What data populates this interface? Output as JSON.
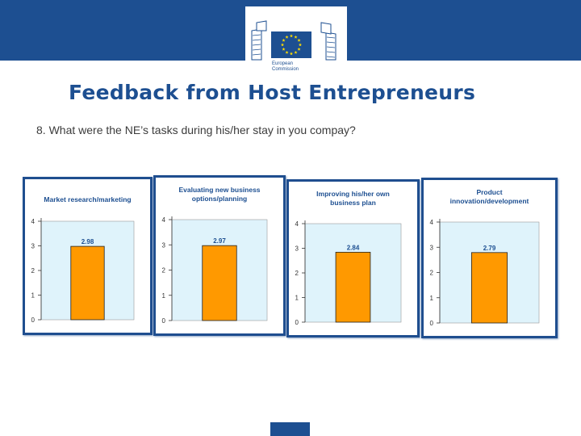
{
  "header": {
    "logo_text_line1": "European",
    "logo_text_line2": "Commission",
    "band_color": "#1d4f91",
    "flag_color": "#1d4f91",
    "star_color": "#ffdd00"
  },
  "slide": {
    "title": "Feedback from Host Entrepreneurs",
    "question": "8. What were the NE’s tasks during his/her stay in you compay?"
  },
  "chart_data": [
    {
      "type": "bar",
      "title_lines": [
        "Market research/marketing"
      ],
      "values": [
        2.98
      ],
      "data_labels": [
        "2.98"
      ],
      "ylim": [
        0,
        4
      ],
      "yticks": [
        "0",
        "1",
        "2",
        "3",
        "4"
      ],
      "bar_color": "#ff9900",
      "plot_bg": "#dff3fb"
    },
    {
      "type": "bar",
      "title_lines": [
        "Evaluating new business",
        "options/planning"
      ],
      "values": [
        2.97
      ],
      "data_labels": [
        "2.97"
      ],
      "ylim": [
        0,
        4
      ],
      "yticks": [
        "0",
        "1",
        "2",
        "3",
        "4"
      ],
      "bar_color": "#ff9900",
      "plot_bg": "#dff3fb"
    },
    {
      "type": "bar",
      "title_lines": [
        "Improving his/her own",
        "business plan"
      ],
      "values": [
        2.84
      ],
      "data_labels": [
        "2.84"
      ],
      "ylim": [
        0,
        4
      ],
      "yticks": [
        "0",
        "1",
        "2",
        "3",
        "4"
      ],
      "bar_color": "#ff9900",
      "plot_bg": "#dff3fb"
    },
    {
      "type": "bar",
      "title_lines": [
        "Product",
        "innovation/development"
      ],
      "values": [
        2.79
      ],
      "data_labels": [
        "2.79"
      ],
      "ylim": [
        0,
        4
      ],
      "yticks": [
        "0",
        "1",
        "2",
        "3",
        "4"
      ],
      "bar_color": "#ff9900",
      "plot_bg": "#dff3fb"
    }
  ]
}
